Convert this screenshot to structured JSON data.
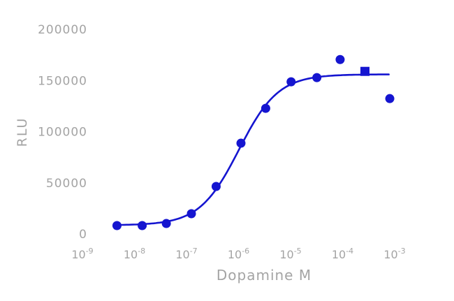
{
  "figure": {
    "xlabel": "Dopamine M",
    "ylabel": "RLU"
  },
  "colors": {
    "background": "#ffffff",
    "accent_blue": "#1515d0",
    "label_gray": "#a4a4a4"
  },
  "chart_data": {
    "type": "scatter",
    "subtype": "dose-response-with-sigmoid-fit",
    "title": "",
    "xlabel": "Dopamine M",
    "ylabel": "RLU",
    "x_scale": "log10",
    "x_unit": "M",
    "xlim": [
      1e-09,
      0.001
    ],
    "ylim": [
      0,
      200000
    ],
    "xticks_exponents": [
      -9,
      -8,
      -7,
      -6,
      -5,
      -4,
      -3
    ],
    "xtick_base": "10",
    "yticks": [
      0,
      50000,
      100000,
      150000,
      200000
    ],
    "grid": false,
    "legend": "none",
    "series": [
      {
        "name": "Dopamine response (circles)",
        "marker": "circle",
        "marker_size_px": 13,
        "color": "#1515d0",
        "x": [
          3.6e-09,
          1.1e-08,
          3.2e-08,
          9.7e-08,
          2.9e-07,
          8.7e-07,
          2.6e-06,
          8e-06,
          2.5e-05,
          7e-05,
          0.00063
        ],
        "y": [
          8200,
          8200,
          10200,
          19800,
          46400,
          88700,
          122800,
          148700,
          152800,
          170500,
          132300
        ]
      },
      {
        "name": "High-dose point (square)",
        "marker": "square",
        "marker_size_px": 13,
        "color": "#1515d0",
        "x": [
          0.00021
        ],
        "y": [
          158900
        ]
      }
    ],
    "fit_curve": {
      "model": "4PL",
      "bottom": 8500,
      "top": 156000,
      "log_ec50": -6.1,
      "hill": 1.15,
      "draw_from_exp": -8.5,
      "draw_to_exp": -3.2,
      "color": "#1515d0",
      "stroke_width": 2.6
    }
  }
}
